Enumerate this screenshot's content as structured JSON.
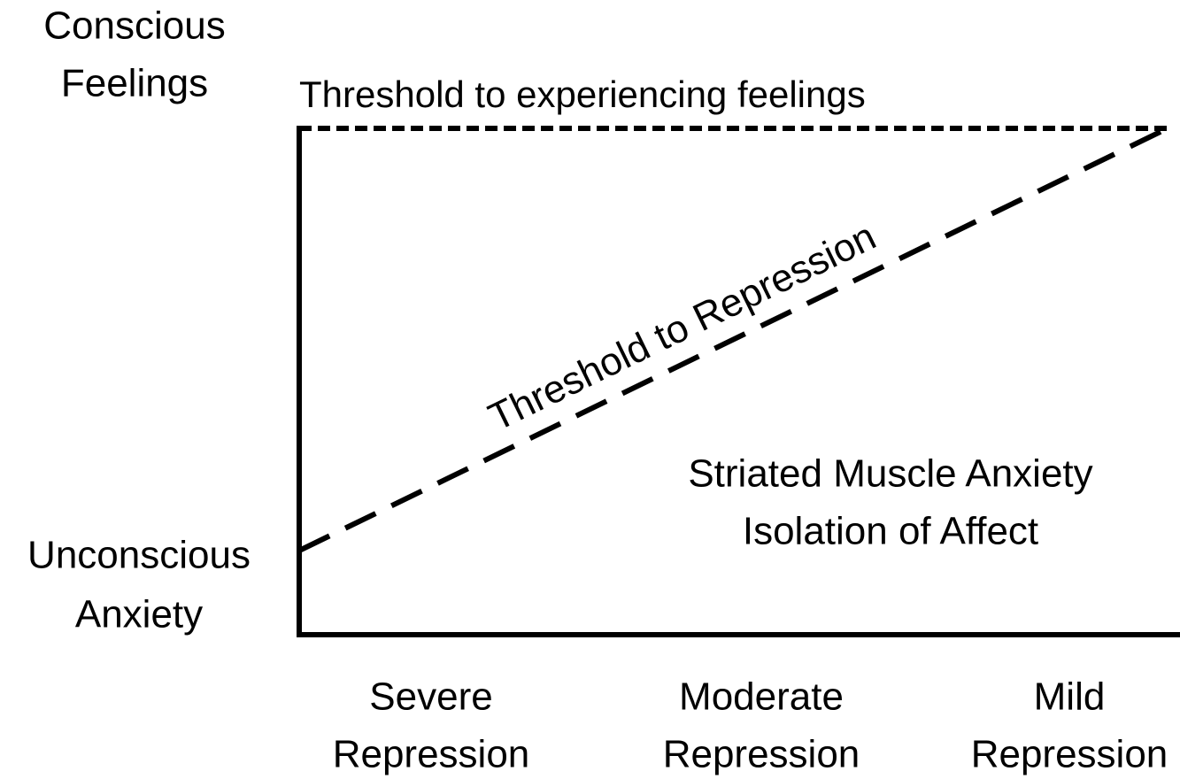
{
  "y_axis": {
    "top_label": [
      "Conscious",
      "Feelings"
    ],
    "bottom_label": [
      "Unconscious",
      "Anxiety"
    ]
  },
  "thresholds": {
    "upper": "Threshold to experiencing feelings",
    "lower": "Threshold to Repression"
  },
  "region_label": [
    "Striated Muscle Anxiety",
    "Isolation of Affect"
  ],
  "x_axis": {
    "labels": [
      [
        "Severe",
        "Repression"
      ],
      [
        "Moderate",
        "Repression"
      ],
      [
        "Mild",
        "Repression"
      ]
    ]
  }
}
